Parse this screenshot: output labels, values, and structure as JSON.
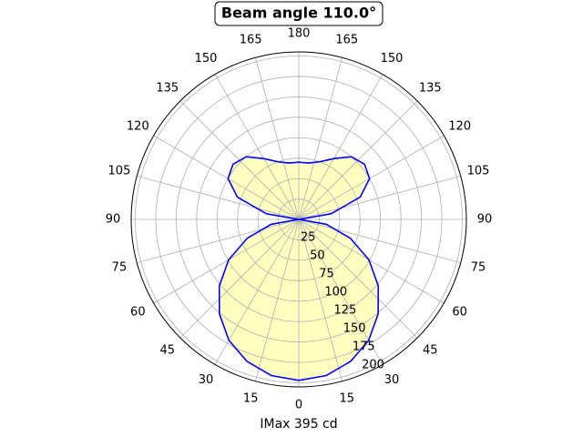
{
  "chart_data": {
    "type": "polar",
    "title": "Beam angle 110.0°",
    "xlabel": "IMax 395 cd",
    "theta": [
      0,
      10,
      20,
      30,
      40,
      50,
      60,
      70,
      80,
      90,
      100,
      110,
      120,
      130,
      140,
      150,
      160,
      170,
      180,
      190,
      200,
      210,
      220,
      230,
      240,
      250,
      260,
      270,
      280,
      290,
      300,
      310,
      320,
      330,
      340,
      350,
      360
    ],
    "values": [
      197,
      194,
      185,
      171,
      151,
      127,
      99,
      67,
      34,
      0,
      40,
      80,
      100,
      105,
      100,
      86,
      75,
      70,
      70,
      70,
      75,
      86,
      100,
      105,
      100,
      80,
      40,
      0,
      34,
      67,
      99,
      127,
      151,
      171,
      185,
      194,
      197
    ],
    "line_color": "#0000ff",
    "fill_color": "#ffffc0",
    "rlim": [
      0,
      205
    ],
    "rticks": [
      25,
      50,
      75,
      100,
      125,
      150,
      175,
      200
    ],
    "thetaticks": [
      0,
      15,
      30,
      45,
      60,
      75,
      90,
      105,
      120,
      135,
      150,
      165,
      180,
      {
        "value": 195,
        "label": "165"
      },
      {
        "value": 210,
        "label": "150"
      },
      {
        "value": 225,
        "label": "135"
      },
      {
        "value": 240,
        "label": "120"
      },
      {
        "value": 255,
        "label": "105"
      },
      {
        "value": 270,
        "label": "90"
      },
      {
        "value": 285,
        "label": "75"
      },
      {
        "value": 300,
        "label": "60"
      },
      {
        "value": 315,
        "label": "45"
      },
      {
        "value": 330,
        "label": "30"
      },
      {
        "value": 345,
        "label": "15"
      }
    ],
    "grid": true
  }
}
